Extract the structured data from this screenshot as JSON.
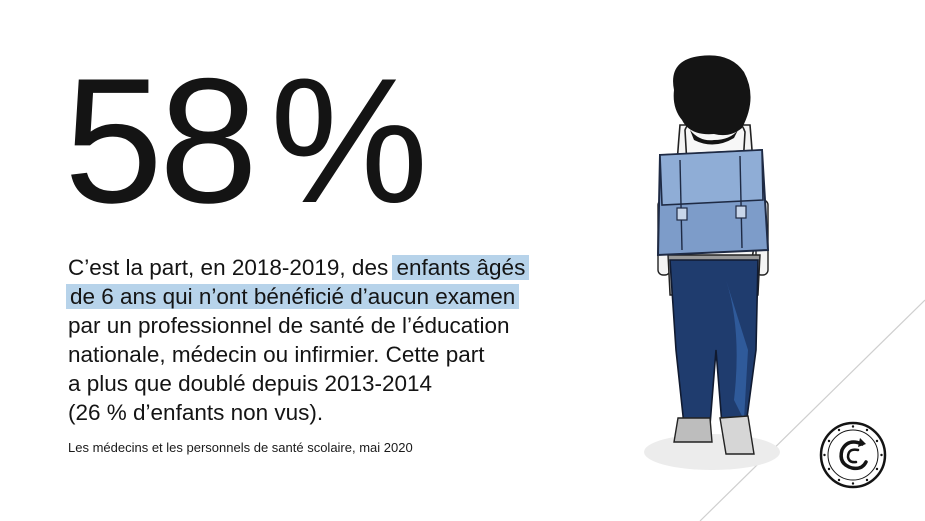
{
  "headline": {
    "number": "58",
    "percent": "%"
  },
  "paragraph": {
    "lines": [
      {
        "before": "C’est la part, en 2018-2019, des ",
        "highlight": "enfants âgés"
      },
      {
        "before": "",
        "highlight": "de 6 ans qui n’ont bénéficié d’aucun examen"
      },
      {
        "before": "par un professionnel de santé de l’éducation",
        "highlight": ""
      },
      {
        "before": "nationale, médecin ou infirmier. Cette part",
        "highlight": ""
      },
      {
        "before": "a plus que doublé depuis 2013-2014",
        "highlight": ""
      },
      {
        "before": "(26 % d’enfants non vus).",
        "highlight": ""
      }
    ]
  },
  "source": "Les médecins et les personnels de santé scolaire, mai 2020",
  "illustration": {
    "name": "child-with-schoolbag-illustration"
  },
  "logo": {
    "name": "institution-seal-icon"
  },
  "colors": {
    "highlight": "#b7d3ea",
    "bag": "#7d9cc9",
    "pants": "#1f3c6e",
    "text": "#141414"
  }
}
